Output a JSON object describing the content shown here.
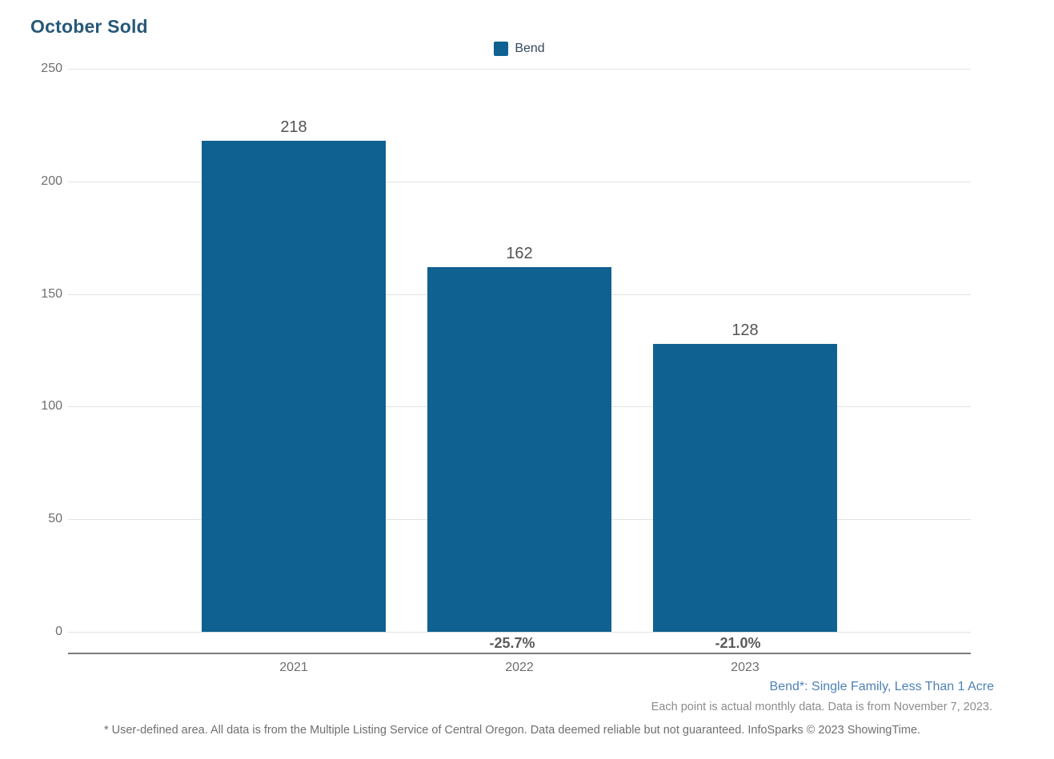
{
  "title": "October Sold",
  "legend": {
    "label": "Bend",
    "swatch_color": "#0f6191"
  },
  "chart_data": {
    "type": "bar",
    "title": "October Sold",
    "categories": [
      "2021",
      "2022",
      "2023"
    ],
    "series": [
      {
        "name": "Bend",
        "values": [
          218,
          162,
          128
        ]
      }
    ],
    "value_labels": [
      "218",
      "162",
      "128"
    ],
    "pct_change_labels": [
      "",
      "-25.7%",
      "-21.0%"
    ],
    "xlabel": "",
    "ylabel": "",
    "ylim": [
      0,
      250
    ],
    "yticks": [
      0,
      50,
      100,
      150,
      200,
      250
    ],
    "grid": true,
    "legend_position": "top-center",
    "bar_color": "#0f6191"
  },
  "footnotes": {
    "area_note": "Bend*: Single Family, Less Than 1 Acre",
    "data_note": "Each point is actual monthly data. Data is from November 7, 2023.",
    "disclaimer": "* User-defined area. All data is from the Multiple Listing Service of Central Oregon. Data deemed reliable but not guaranteed. InfoSparks © 2023 ShowingTime."
  },
  "colors": {
    "title": "#275878",
    "bar": "#0f6191",
    "gridline": "#e2e2e2",
    "axis_line": "#7b7b7b",
    "tick_label": "#6e6e6e",
    "value_label": "#525252",
    "pct_label": "#5a5a5a",
    "area_note": "#4d81b5",
    "data_note": "#8c8c8c",
    "disclaimer": "#6f6f6f"
  }
}
